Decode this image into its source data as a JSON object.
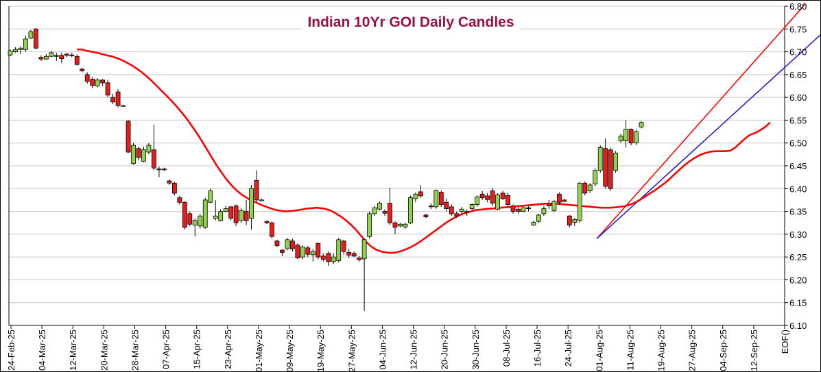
{
  "chart_data": {
    "type": "candlestick",
    "title": "Indian 10Yr GOI Daily Candles",
    "ylim": [
      6.1,
      6.8
    ],
    "yticks": [
      "6.10",
      "6.15",
      "6.20",
      "6.25",
      "6.30",
      "6.35",
      "6.40",
      "6.45",
      "6.50",
      "6.55",
      "6.60",
      "6.65",
      "6.70",
      "6.75",
      "6.80"
    ],
    "xticks": [
      "24-Feb-25",
      "04-Mar-25",
      "12-Mar-25",
      "20-Mar-25",
      "28-Mar-25",
      "07-Apr-25",
      "15-Apr-25",
      "23-Apr-25",
      "01-May-25",
      "09-May-25",
      "19-May-25",
      "27-May-25",
      "04-Jun-25",
      "12-Jun-25",
      "20-Jun-25",
      "30-Jun-25",
      "08-Jul-25",
      "16-Jul-25",
      "24-Jul-25",
      "01-Aug-25",
      "11-Aug-25",
      "19-Aug-25",
      "27-Aug-25",
      "04-Sep-25",
      "12-Sep-25",
      "EOF()"
    ],
    "grid": true,
    "colors": {
      "up": "#92d050",
      "down": "#e81c1c",
      "ma": "#ff0000",
      "upper_channel": "#ff0000",
      "lower_channel": "#1f1fcf",
      "title": "#9b1046"
    },
    "candles": [
      {
        "o": 6.693,
        "h": 6.705,
        "l": 6.69,
        "c": 6.702
      },
      {
        "o": 6.7,
        "h": 6.71,
        "l": 6.698,
        "c": 6.705
      },
      {
        "o": 6.705,
        "h": 6.712,
        "l": 6.695,
        "c": 6.708
      },
      {
        "o": 6.705,
        "h": 6.735,
        "l": 6.7,
        "c": 6.728
      },
      {
        "o": 6.73,
        "h": 6.748,
        "l": 6.728,
        "c": 6.744
      },
      {
        "o": 6.75,
        "h": 6.752,
        "l": 6.705,
        "c": 6.708
      },
      {
        "o": 6.688,
        "h": 6.692,
        "l": 6.68,
        "c": 6.684
      },
      {
        "o": 6.684,
        "h": 6.695,
        "l": 6.682,
        "c": 6.69
      },
      {
        "o": 6.69,
        "h": 6.702,
        "l": 6.688,
        "c": 6.698
      },
      {
        "o": 6.692,
        "h": 6.698,
        "l": 6.68,
        "c": 6.69
      },
      {
        "o": 6.692,
        "h": 6.698,
        "l": 6.675,
        "c": 6.685
      },
      {
        "o": 6.695,
        "h": 6.698,
        "l": 6.688,
        "c": 6.692
      },
      {
        "o": 6.693,
        "h": 6.698,
        "l": 6.688,
        "c": 6.692
      },
      {
        "o": 6.69,
        "h": 6.694,
        "l": 6.67,
        "c": 6.672
      },
      {
        "o": 6.662,
        "h": 6.665,
        "l": 6.655,
        "c": 6.658
      },
      {
        "o": 6.65,
        "h": 6.655,
        "l": 6.63,
        "c": 6.635
      },
      {
        "o": 6.64,
        "h": 6.645,
        "l": 6.62,
        "c": 6.626
      },
      {
        "o": 6.625,
        "h": 6.642,
        "l": 6.622,
        "c": 6.638
      },
      {
        "o": 6.638,
        "h": 6.64,
        "l": 6.625,
        "c": 6.632
      },
      {
        "o": 6.632,
        "h": 6.638,
        "l": 6.6,
        "c": 6.605
      },
      {
        "o": 6.6,
        "h": 6.608,
        "l": 6.585,
        "c": 6.59
      },
      {
        "o": 6.612,
        "h": 6.618,
        "l": 6.578,
        "c": 6.582
      },
      {
        "o": 6.582,
        "h": 6.584,
        "l": 6.58,
        "c": 6.582
      },
      {
        "o": 6.548,
        "h": 6.55,
        "l": 6.478,
        "c": 6.48
      },
      {
        "o": 6.455,
        "h": 6.5,
        "l": 6.452,
        "c": 6.495
      },
      {
        "o": 6.488,
        "h": 6.492,
        "l": 6.462,
        "c": 6.468
      },
      {
        "o": 6.46,
        "h": 6.492,
        "l": 6.458,
        "c": 6.485
      },
      {
        "o": 6.48,
        "h": 6.5,
        "l": 6.475,
        "c": 6.495
      },
      {
        "o": 6.485,
        "h": 6.54,
        "l": 6.44,
        "c": 6.445
      },
      {
        "o": 6.443,
        "h": 6.448,
        "l": 6.425,
        "c": 6.442
      },
      {
        "o": 6.443,
        "h": 6.446,
        "l": 6.438,
        "c": 6.442
      },
      {
        "o": 6.417,
        "h": 6.42,
        "l": 6.408,
        "c": 6.412
      },
      {
        "o": 6.412,
        "h": 6.415,
        "l": 6.385,
        "c": 6.39
      },
      {
        "o": 6.38,
        "h": 6.384,
        "l": 6.365,
        "c": 6.37
      },
      {
        "o": 6.37,
        "h": 6.372,
        "l": 6.31,
        "c": 6.315
      },
      {
        "o": 6.345,
        "h": 6.35,
        "l": 6.318,
        "c": 6.322
      },
      {
        "o": 6.32,
        "h": 6.335,
        "l": 6.295,
        "c": 6.33
      },
      {
        "o": 6.318,
        "h": 6.345,
        "l": 6.312,
        "c": 6.34
      },
      {
        "o": 6.315,
        "h": 6.38,
        "l": 6.312,
        "c": 6.375
      },
      {
        "o": 6.37,
        "h": 6.4,
        "l": 6.368,
        "c": 6.395
      },
      {
        "o": 6.335,
        "h": 6.375,
        "l": 6.33,
        "c": 6.34
      },
      {
        "o": 6.33,
        "h": 6.355,
        "l": 6.328,
        "c": 6.35
      },
      {
        "o": 6.35,
        "h": 6.362,
        "l": 6.348,
        "c": 6.356
      },
      {
        "o": 6.36,
        "h": 6.362,
        "l": 6.33,
        "c": 6.335
      },
      {
        "o": 6.362,
        "h": 6.365,
        "l": 6.318,
        "c": 6.325
      },
      {
        "o": 6.33,
        "h": 6.358,
        "l": 6.325,
        "c": 6.352
      },
      {
        "o": 6.35,
        "h": 6.375,
        "l": 6.32,
        "c": 6.33
      },
      {
        "o": 6.335,
        "h": 6.408,
        "l": 6.31,
        "c": 6.4
      },
      {
        "o": 6.418,
        "h": 6.44,
        "l": 6.37,
        "c": 6.375
      },
      {
        "o": 6.375,
        "h": 6.378,
        "l": 6.373,
        "c": 6.375
      },
      {
        "o": 6.328,
        "h": 6.33,
        "l": 6.322,
        "c": 6.325
      },
      {
        "o": 6.325,
        "h": 6.328,
        "l": 6.29,
        "c": 6.295
      },
      {
        "o": 6.285,
        "h": 6.288,
        "l": 6.272,
        "c": 6.275
      },
      {
        "o": 6.265,
        "h": 6.268,
        "l": 6.252,
        "c": 6.26
      },
      {
        "o": 6.268,
        "h": 6.292,
        "l": 6.265,
        "c": 6.288
      },
      {
        "o": 6.285,
        "h": 6.29,
        "l": 6.262,
        "c": 6.268
      },
      {
        "o": 6.276,
        "h": 6.28,
        "l": 6.245,
        "c": 6.248
      },
      {
        "o": 6.25,
        "h": 6.276,
        "l": 6.245,
        "c": 6.272
      },
      {
        "o": 6.27,
        "h": 6.274,
        "l": 6.25,
        "c": 6.256
      },
      {
        "o": 6.255,
        "h": 6.268,
        "l": 6.24,
        "c": 6.262
      },
      {
        "o": 6.28,
        "h": 6.282,
        "l": 6.245,
        "c": 6.25
      },
      {
        "o": 6.252,
        "h": 6.258,
        "l": 6.24,
        "c": 6.245
      },
      {
        "o": 6.258,
        "h": 6.262,
        "l": 6.23,
        "c": 6.24
      },
      {
        "o": 6.24,
        "h": 6.258,
        "l": 6.235,
        "c": 6.25
      },
      {
        "o": 6.242,
        "h": 6.292,
        "l": 6.238,
        "c": 6.288
      },
      {
        "o": 6.285,
        "h": 6.288,
        "l": 6.255,
        "c": 6.262
      },
      {
        "o": 6.26,
        "h": 6.268,
        "l": 6.248,
        "c": 6.254
      },
      {
        "o": 6.258,
        "h": 6.262,
        "l": 6.25,
        "c": 6.252
      },
      {
        "o": 6.248,
        "h": 6.252,
        "l": 6.24,
        "c": 6.244
      },
      {
        "o": 6.246,
        "h": 6.29,
        "l": 6.132,
        "c": 6.288
      },
      {
        "o": 6.295,
        "h": 6.35,
        "l": 6.29,
        "c": 6.345
      },
      {
        "o": 6.345,
        "h": 6.362,
        "l": 6.34,
        "c": 6.358
      },
      {
        "o": 6.355,
        "h": 6.372,
        "l": 6.352,
        "c": 6.368
      },
      {
        "o": 6.35,
        "h": 6.355,
        "l": 6.34,
        "c": 6.346
      },
      {
        "o": 6.368,
        "h": 6.402,
        "l": 6.32,
        "c": 6.325
      },
      {
        "o": 6.325,
        "h": 6.328,
        "l": 6.3,
        "c": 6.315
      },
      {
        "o": 6.318,
        "h": 6.325,
        "l": 6.315,
        "c": 6.322
      },
      {
        "o": 6.316,
        "h": 6.325,
        "l": 6.312,
        "c": 6.322
      },
      {
        "o": 6.325,
        "h": 6.385,
        "l": 6.322,
        "c": 6.38
      },
      {
        "o": 6.378,
        "h": 6.392,
        "l": 6.37,
        "c": 6.388
      },
      {
        "o": 6.393,
        "h": 6.407,
        "l": 6.38,
        "c": 6.384
      },
      {
        "o": 6.342,
        "h": 6.345,
        "l": 6.335,
        "c": 6.338
      },
      {
        "o": 6.362,
        "h": 6.368,
        "l": 6.355,
        "c": 6.36
      },
      {
        "o": 6.36,
        "h": 6.398,
        "l": 6.356,
        "c": 6.396
      },
      {
        "o": 6.392,
        "h": 6.396,
        "l": 6.36,
        "c": 6.365
      },
      {
        "o": 6.37,
        "h": 6.378,
        "l": 6.35,
        "c": 6.356
      },
      {
        "o": 6.36,
        "h": 6.365,
        "l": 6.34,
        "c": 6.345
      },
      {
        "o": 6.345,
        "h": 6.35,
        "l": 6.336,
        "c": 6.34
      },
      {
        "o": 6.35,
        "h": 6.36,
        "l": 6.345,
        "c": 6.355
      },
      {
        "o": 6.348,
        "h": 6.354,
        "l": 6.34,
        "c": 6.35
      },
      {
        "o": 6.356,
        "h": 6.368,
        "l": 6.352,
        "c": 6.365
      },
      {
        "o": 6.365,
        "h": 6.385,
        "l": 6.36,
        "c": 6.382
      },
      {
        "o": 6.388,
        "h": 6.395,
        "l": 6.375,
        "c": 6.38
      },
      {
        "o": 6.384,
        "h": 6.39,
        "l": 6.37,
        "c": 6.376
      },
      {
        "o": 6.395,
        "h": 6.402,
        "l": 6.362,
        "c": 6.368
      },
      {
        "o": 6.355,
        "h": 6.39,
        "l": 6.352,
        "c": 6.386
      },
      {
        "o": 6.39,
        "h": 6.395,
        "l": 6.375,
        "c": 6.378
      },
      {
        "o": 6.385,
        "h": 6.39,
        "l": 6.362,
        "c": 6.365
      },
      {
        "o": 6.362,
        "h": 6.365,
        "l": 6.345,
        "c": 6.35
      },
      {
        "o": 6.355,
        "h": 6.36,
        "l": 6.345,
        "c": 6.35
      },
      {
        "o": 6.35,
        "h": 6.362,
        "l": 6.348,
        "c": 6.358
      },
      {
        "o": 6.358,
        "h": 6.362,
        "l": 6.35,
        "c": 6.356
      },
      {
        "o": 6.32,
        "h": 6.33,
        "l": 6.318,
        "c": 6.326
      },
      {
        "o": 6.328,
        "h": 6.345,
        "l": 6.325,
        "c": 6.342
      },
      {
        "o": 6.345,
        "h": 6.362,
        "l": 6.34,
        "c": 6.356
      },
      {
        "o": 6.368,
        "h": 6.375,
        "l": 6.355,
        "c": 6.362
      },
      {
        "o": 6.352,
        "h": 6.375,
        "l": 6.348,
        "c": 6.372
      },
      {
        "o": 6.388,
        "h": 6.392,
        "l": 6.365,
        "c": 6.37
      },
      {
        "o": 6.375,
        "h": 6.378,
        "l": 6.37,
        "c": 6.372
      },
      {
        "o": 6.34,
        "h": 6.342,
        "l": 6.315,
        "c": 6.32
      },
      {
        "o": 6.326,
        "h": 6.335,
        "l": 6.318,
        "c": 6.332
      },
      {
        "o": 6.33,
        "h": 6.415,
        "l": 6.325,
        "c": 6.412
      },
      {
        "o": 6.412,
        "h": 6.416,
        "l": 6.385,
        "c": 6.39
      },
      {
        "o": 6.395,
        "h": 6.412,
        "l": 6.39,
        "c": 6.408
      },
      {
        "o": 6.41,
        "h": 6.445,
        "l": 6.405,
        "c": 6.44
      },
      {
        "o": 6.44,
        "h": 6.495,
        "l": 6.435,
        "c": 6.49
      },
      {
        "o": 6.488,
        "h": 6.51,
        "l": 6.4,
        "c": 6.405
      },
      {
        "o": 6.485,
        "h": 6.49,
        "l": 6.395,
        "c": 6.4
      },
      {
        "o": 6.44,
        "h": 6.482,
        "l": 6.435,
        "c": 6.478
      },
      {
        "o": 6.505,
        "h": 6.52,
        "l": 6.5,
        "c": 6.515
      },
      {
        "o": 6.505,
        "h": 6.55,
        "l": 6.49,
        "c": 6.53
      },
      {
        "o": 6.53,
        "h": 6.532,
        "l": 6.495,
        "c": 6.5
      },
      {
        "o": 6.5,
        "h": 6.53,
        "l": 6.495,
        "c": 6.525
      },
      {
        "o": 6.535,
        "h": 6.548,
        "l": 6.532,
        "c": 6.545
      }
    ],
    "moving_average": [
      6.705,
      6.705,
      6.702,
      6.7,
      6.698,
      6.695,
      6.692,
      6.69,
      6.686,
      6.682,
      6.676,
      6.67,
      6.663,
      6.655,
      6.646,
      6.636,
      6.625,
      6.614,
      6.603,
      6.592,
      6.58,
      6.567,
      6.553,
      6.538,
      6.522,
      6.505,
      6.487,
      6.469,
      6.451,
      6.435,
      6.42,
      6.407,
      6.396,
      6.387,
      6.38,
      6.374,
      6.369,
      6.364,
      6.36,
      6.356,
      6.353,
      6.351,
      6.35,
      6.351,
      6.352,
      6.354,
      6.356,
      6.357,
      6.358,
      6.357,
      6.355,
      6.351,
      6.345,
      6.338,
      6.33,
      6.32,
      6.309,
      6.296,
      6.283,
      6.273,
      6.266,
      6.262,
      6.26,
      6.259,
      6.26,
      6.263,
      6.267,
      6.272,
      6.278,
      6.285,
      6.293,
      6.301,
      6.309,
      6.317,
      6.325,
      6.332,
      6.338,
      6.343,
      6.347,
      6.35,
      6.353,
      6.354,
      6.355,
      6.356,
      6.357,
      6.358,
      6.359,
      6.36,
      6.361,
      6.362,
      6.363,
      6.364,
      6.365,
      6.366,
      6.367,
      6.367,
      6.367,
      6.366,
      6.365,
      6.364,
      6.363,
      6.362,
      6.361,
      6.36,
      6.359,
      6.358,
      6.358,
      6.358,
      6.359,
      6.36,
      6.362,
      6.365,
      6.37,
      6.376,
      6.383,
      6.39,
      6.397,
      6.405,
      6.413,
      6.423,
      6.433,
      6.443,
      6.453,
      6.461,
      6.468,
      6.474,
      6.478,
      6.481,
      6.482,
      6.482,
      6.482,
      6.483,
      6.49,
      6.5,
      6.51,
      6.518,
      6.522,
      6.528,
      6.535,
      6.545
    ],
    "upper_channel": [
      [
        114.3,
        6.29
      ],
      [
        155.0,
        6.805
      ]
    ],
    "lower_channel": [
      [
        114.3,
        6.29
      ],
      [
        158.0,
        6.738
      ]
    ]
  }
}
